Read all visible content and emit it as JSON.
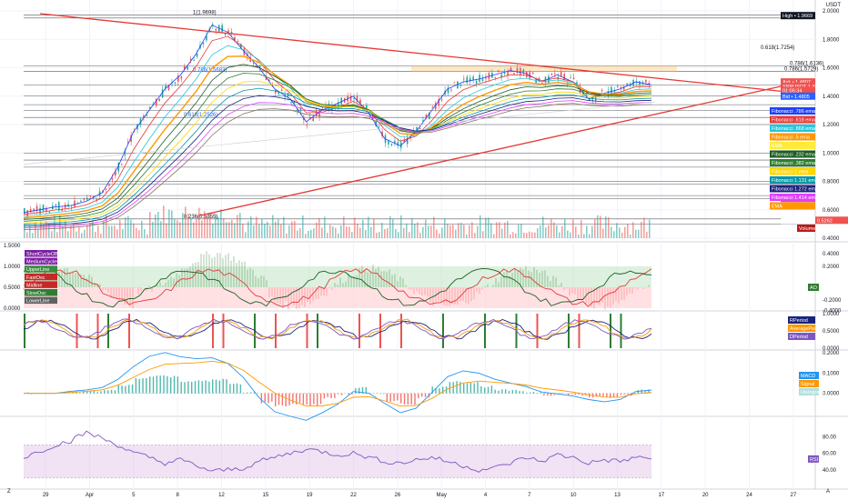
{
  "currency": "USDT",
  "tz_label": "Z",
  "auto_label": "A",
  "colors": {
    "up": "#26a69a",
    "down": "#ef5350",
    "trend": "#e53935",
    "orange": "#ff9800",
    "purple": "#7e57c2"
  },
  "chart_data": [
    {
      "type": "candlestick",
      "panel": "price",
      "ylim": [
        0.4,
        2.0
      ],
      "y_ticks": [
        "2.0000",
        "1.8000",
        "1.6000",
        "1.4000",
        "1.2000",
        "1.0000",
        "0.8000",
        "0.6000",
        "0.4000"
      ],
      "x_ticks": [
        "29",
        "Apr",
        "5",
        "8",
        "12",
        "15",
        "19",
        "22",
        "26",
        "May",
        "4",
        "7",
        "10",
        "13",
        "17",
        "20",
        "24",
        "27"
      ],
      "close": [
        0.58,
        0.6,
        0.62,
        0.63,
        0.66,
        0.72,
        0.9,
        1.15,
        1.3,
        1.45,
        1.55,
        1.7,
        1.9,
        1.85,
        1.72,
        1.6,
        1.45,
        1.38,
        1.22,
        1.3,
        1.35,
        1.4,
        1.28,
        1.1,
        1.05,
        1.15,
        1.3,
        1.45,
        1.5,
        1.52,
        1.55,
        1.58,
        1.56,
        1.5,
        1.55,
        1.5,
        1.38,
        1.42,
        1.45,
        1.5,
        1.48
      ],
      "high_label": "High • 1.9669",
      "low_label": "Low • 0.5262",
      "avg_label": "Avg • 1.2458",
      "last_price": "1.4807",
      "ask_label": "Ask • 1.4807",
      "bid_label": "Bid • 1.4805",
      "symbol_tag": "XRPUSDT",
      "countdown": "01:05:34",
      "small_tags": [
        "0.7861",
        "0.5262"
      ],
      "fib_levels": [
        {
          "label": "1(1.9698)",
          "value": 1.9698
        },
        {
          "label": "0.786(1.6136)",
          "value": 1.6136
        },
        {
          "label": "0.618(1.7254)",
          "value": 1.7254
        },
        {
          "label": "0.786(1.5729)",
          "value": 1.5729
        },
        {
          "label": "0.786(1.5683)",
          "value": 1.5683
        },
        {
          "label": "0.618(1.2526)",
          "value": 1.2526
        },
        {
          "label": "0.236(0.5355)",
          "value": 0.5355
        }
      ],
      "legend_tags": [
        {
          "text": "Fibonacci .786 ema",
          "color": "#1e40ff"
        },
        {
          "text": "Fibonacci .618 ema",
          "color": "#e53935"
        },
        {
          "text": "Fibonacci .868 ema",
          "color": "#26c6da"
        },
        {
          "text": "Fibonacci .5 ema",
          "color": "#ff9800"
        },
        {
          "text": "EMA",
          "color": "#ffeb3b"
        },
        {
          "text": "Fibonacci .232 ema",
          "color": "#1b5e20"
        },
        {
          "text": "Fibonacci .382 ema",
          "color": "#2e7d32"
        },
        {
          "text": "Fibonacci 1 ema",
          "color": "#ffd600"
        },
        {
          "text": "Fibonacci 1.131 ema",
          "color": "#0097a7"
        },
        {
          "text": "Fibonacci 1.272 ema",
          "color": "#1a237e"
        },
        {
          "text": "Fibonacci 1.414 ema",
          "color": "#e040fb"
        },
        {
          "text": "EMA",
          "color": "#ff9800"
        }
      ],
      "volume_label": "Volume"
    },
    {
      "type": "oscillator",
      "panel": "cycle",
      "ylim": [
        0,
        1.5
      ],
      "y_ticks": [
        "1.5000",
        "1.0000",
        "0.5000",
        "0.0000"
      ],
      "right_ticks": [
        "0.4000",
        "0.2000",
        "-0.2000",
        "-0.4000"
      ],
      "legend": [
        "ShortCycleOB",
        "MediumCycleOB",
        "UpperLine",
        "FastOsc",
        "Midline",
        "SlowOsc",
        "LowerLine"
      ],
      "tag": "AO"
    },
    {
      "type": "oscillator",
      "panel": "rperiod",
      "ylim": [
        0,
        1
      ],
      "y_ticks": [
        "1.0000",
        "0.5000",
        "0.0000"
      ],
      "tags": [
        "RPeriod",
        "AveragePeriod",
        "DPeriod"
      ]
    },
    {
      "type": "macd",
      "panel": "macd",
      "ylim": [
        -0.1,
        0.2
      ],
      "y_ticks": [
        "0.2000",
        "0.1000",
        "0.0000"
      ],
      "tags": [
        "MACD",
        "Signal",
        "Histogram"
      ]
    },
    {
      "type": "line",
      "panel": "rsi",
      "ylim": [
        20,
        100
      ],
      "y_ticks": [
        "80.00",
        "60.00",
        "40.00"
      ],
      "values": [
        55,
        62,
        70,
        75,
        85,
        78,
        70,
        60,
        55,
        48,
        52,
        45,
        38,
        40,
        42,
        50,
        55,
        60,
        65,
        62,
        58,
        60,
        55,
        50,
        48,
        52,
        55,
        50,
        45,
        40,
        42,
        48,
        55,
        50,
        58,
        55,
        48,
        52,
        50,
        55,
        53
      ],
      "tag": "RSI"
    }
  ]
}
